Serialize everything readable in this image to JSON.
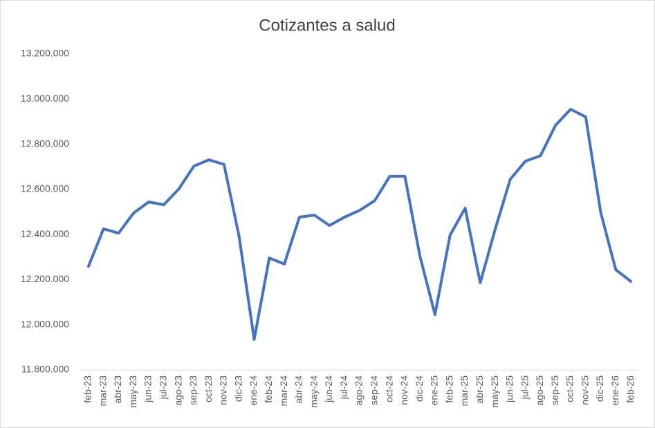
{
  "chart_data": {
    "type": "line",
    "title": "Cotizantes a salud",
    "categories": [
      "feb-23",
      "mar-23",
      "abr-23",
      "may-23",
      "jun-23",
      "jul-23",
      "ago-23",
      "sep-23",
      "oct-23",
      "nov-23",
      "dic-23",
      "ene-24",
      "feb-24",
      "mar-24",
      "abr-24",
      "may-24",
      "jun-24",
      "jul-24",
      "ago-24",
      "sep-24",
      "oct-24",
      "nov-24",
      "dic-24",
      "ene-25",
      "feb-25",
      "mar-25",
      "abr-25",
      "may-25",
      "jun-25",
      "jul-25",
      "ago-25",
      "sep-25",
      "oct-25",
      "nov-25",
      "dic-25",
      "ene-26",
      "feb-26"
    ],
    "values": [
      12259000,
      12425000,
      12406000,
      12495000,
      12544000,
      12532000,
      12602000,
      12703000,
      12731000,
      12710000,
      12391000,
      11935000,
      12296000,
      12269000,
      12477000,
      12486000,
      12440000,
      12477000,
      12507000,
      12550000,
      12658000,
      12658000,
      12305000,
      12045000,
      12397000,
      12517000,
      12186000,
      12425000,
      12645000,
      12725000,
      12749000,
      12884000,
      12955000,
      12921000,
      12498000,
      12244000,
      12192000
    ],
    "color": "#4472c4",
    "ylim": [
      11800000,
      13200000
    ],
    "yticks": [
      {
        "value": 11800000,
        "label": "11.800.000"
      },
      {
        "value": 12000000,
        "label": "12.000.000"
      },
      {
        "value": 12200000,
        "label": "12.200.000"
      },
      {
        "value": 12400000,
        "label": "12.400.000"
      },
      {
        "value": 12600000,
        "label": "12.600.000"
      },
      {
        "value": 12800000,
        "label": "12.800.000"
      },
      {
        "value": 13000000,
        "label": "13.000.000"
      },
      {
        "value": 13200000,
        "label": "13.200.000"
      }
    ],
    "grid": false
  }
}
